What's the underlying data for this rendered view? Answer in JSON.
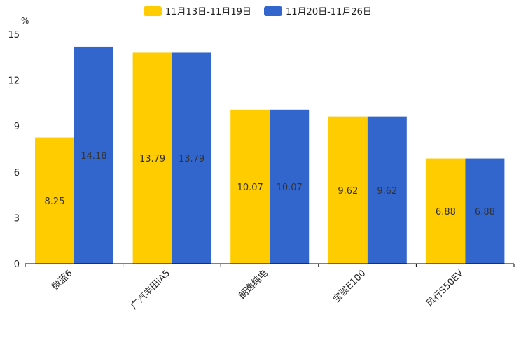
{
  "chart_data": {
    "type": "bar",
    "unit": "%",
    "categories": [
      "微蓝6",
      "广汽丰田iA5",
      "朗逸纯电",
      "宝骏E100",
      "风行S50EV"
    ],
    "series": [
      {
        "name": "11月13日-11月19日",
        "color": "#ffcc00",
        "values": [
          8.25,
          13.79,
          10.07,
          9.62,
          6.88
        ],
        "labels": [
          "8.25",
          "13.79",
          "10.07",
          "9.62",
          "6.88"
        ]
      },
      {
        "name": "11月20日-11月26日",
        "color": "#3366cc",
        "values": [
          14.18,
          13.79,
          10.07,
          9.62,
          6.88
        ],
        "labels": [
          "14.18",
          "13.79",
          "10.07",
          "9.62",
          "6.88"
        ]
      }
    ],
    "ylim": [
      0,
      15
    ],
    "yticks": [
      0,
      3,
      6,
      9,
      12,
      15
    ],
    "ytick_labels": [
      "0",
      "3",
      "6",
      "9",
      "12",
      "15"
    ],
    "legend_position": "top-center",
    "grid": false
  }
}
